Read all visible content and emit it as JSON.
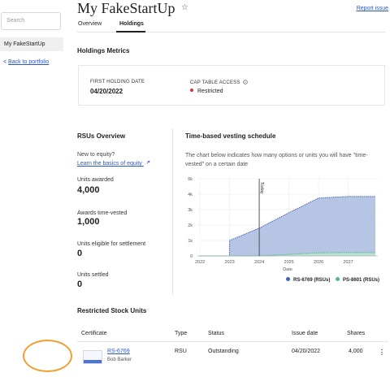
{
  "sidebar": {
    "search_placeholder": "Search",
    "active_item": "My FakeStartUp",
    "back_arrow": "<",
    "back_label": "Back to portfolio"
  },
  "header": {
    "title": "My FakeStartUp",
    "star_icon": "☆",
    "report_issue": "Report issue"
  },
  "tabs": [
    {
      "label": "Overview",
      "active": false
    },
    {
      "label": "Holdings",
      "active": true
    }
  ],
  "metrics": {
    "heading": "Holdings Metrics",
    "first_holding_label": "FIRST HOLDING DATE",
    "first_holding_value": "04/20/2022",
    "cap_table_label": "CAP TABLE ACCESS",
    "cap_table_value": "Restricted",
    "status_color": "#d8343b"
  },
  "rsus_overview": {
    "heading": "RSUs Overview",
    "new_to_equity": "New to equity?",
    "learn_link": "Learn the basics of equity",
    "stats": [
      {
        "label": "Units awarded",
        "value": "4,000"
      },
      {
        "label": "Awards time-vested",
        "value": "1,000"
      },
      {
        "label": "Units eligible for settlement",
        "value": "0"
      },
      {
        "label": "Units settled",
        "value": "0"
      }
    ]
  },
  "vesting": {
    "heading": "Time-based vesting schedule",
    "description": "The chart below indicates how many options or units you will have \"time-vested\" on a certain date"
  },
  "chart_data": {
    "type": "area",
    "x": [
      "2022-01",
      "2023-01",
      "2023-01",
      "2024-01",
      "2025-01",
      "2026-01",
      "2027-01",
      "2027-12"
    ],
    "xlabel": "Date",
    "ylabel": "",
    "x_ticks": [
      "2022",
      "2023",
      "2024",
      "2025",
      "2026",
      "2027"
    ],
    "y_ticks": [
      "0",
      "1k",
      "2k",
      "3k",
      "4k",
      "5k"
    ],
    "ylim": [
      0,
      5000
    ],
    "today_label": "Today",
    "today_x": "2024-01",
    "series": [
      {
        "name": "RS-6769 (RSUs)",
        "color": "#3d66b8",
        "fill": "#aebfe0",
        "values": [
          0,
          0,
          1000,
          1800,
          2800,
          3750,
          3850,
          3850
        ]
      },
      {
        "name": "PS-8601 (RSUs)",
        "color": "#55b88f",
        "fill": "#b9e3d2",
        "values": [
          0,
          0,
          0,
          0,
          100,
          200,
          220,
          220
        ]
      }
    ],
    "grid": true,
    "legend": "bottom-right"
  },
  "rsu_table": {
    "heading": "Restricted Stock Units",
    "columns": [
      "Certificate",
      "Type",
      "Status",
      "Issue date",
      "Shares"
    ],
    "rows": [
      {
        "certificate": "RS-6769",
        "holder": "Bob Barker",
        "type": "RSU",
        "status": "Outstanding",
        "issue_date": "04/20/2022",
        "shares": "4,000",
        "menu": "⋮"
      }
    ]
  }
}
